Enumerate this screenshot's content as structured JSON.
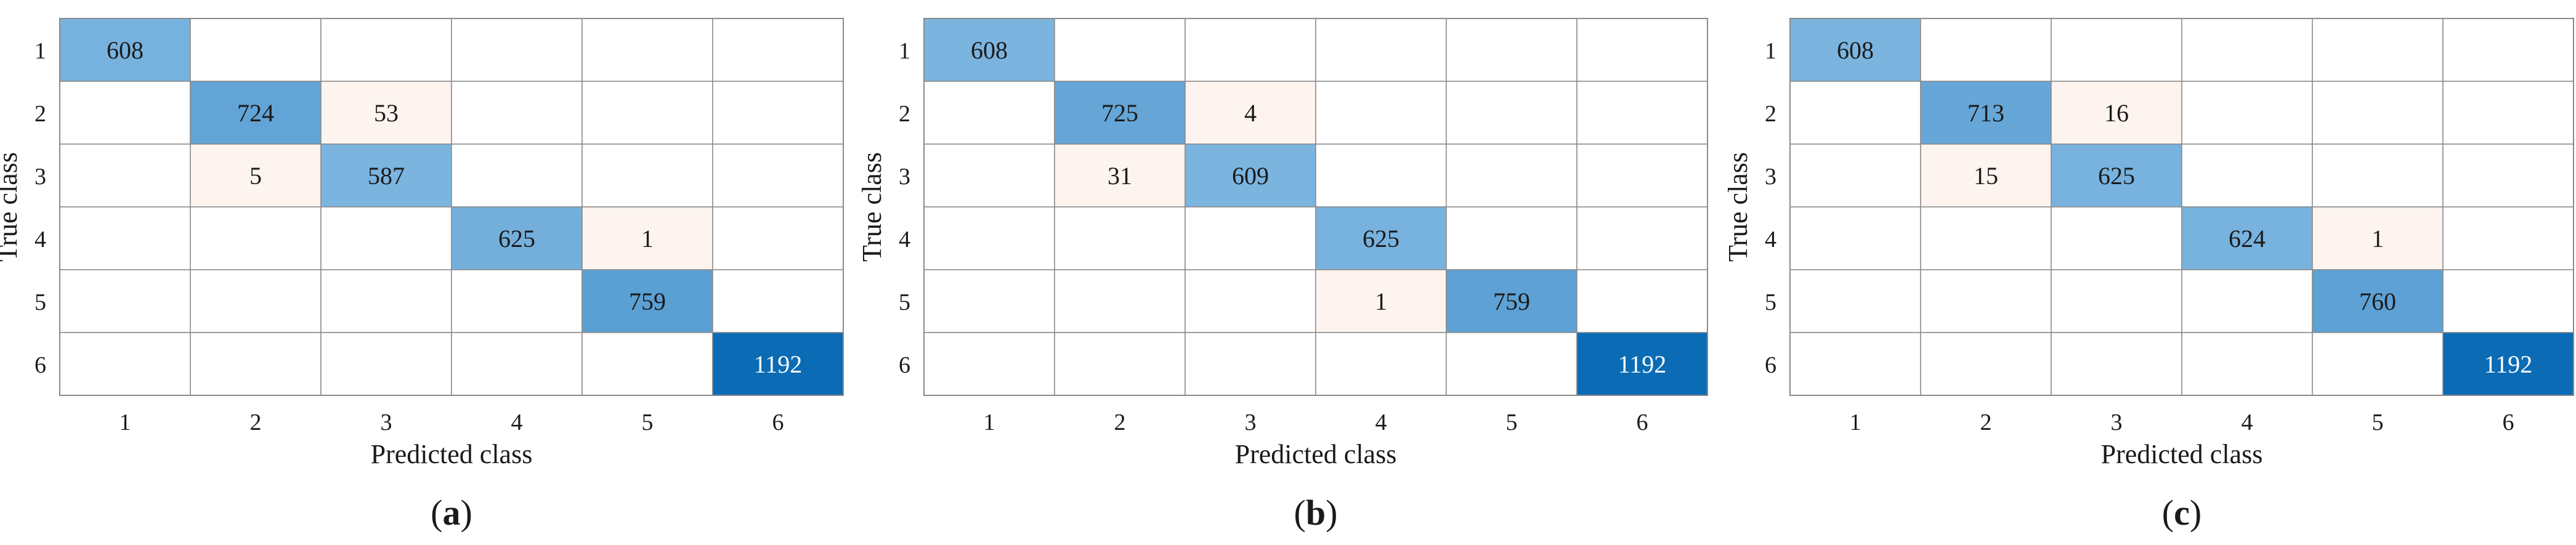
{
  "colors": {
    "diag_low": "#7bb4df",
    "diag_high": "#0b6cb5",
    "offdiag": "#fdf3ef",
    "grid": "#8a8a8a",
    "text_dark": "#1a1a1a",
    "text_light": "#ffffff"
  },
  "chart_data": [
    {
      "type": "heatmap",
      "panel_label": "(a)",
      "panel_letter": "a",
      "xlabel": "Predicted class",
      "ylabel": "True class",
      "x": [
        "1",
        "2",
        "3",
        "4",
        "5",
        "6"
      ],
      "y": [
        "1",
        "2",
        "3",
        "4",
        "5",
        "6"
      ],
      "matrix": [
        [
          608,
          0,
          0,
          0,
          0,
          0
        ],
        [
          0,
          724,
          53,
          0,
          0,
          0
        ],
        [
          0,
          5,
          587,
          0,
          0,
          0
        ],
        [
          0,
          0,
          0,
          625,
          1,
          0
        ],
        [
          0,
          0,
          0,
          0,
          759,
          0
        ],
        [
          0,
          0,
          0,
          0,
          0,
          1192
        ]
      ]
    },
    {
      "type": "heatmap",
      "panel_label": "(b)",
      "panel_letter": "b",
      "xlabel": "Predicted class",
      "ylabel": "True class",
      "x": [
        "1",
        "2",
        "3",
        "4",
        "5",
        "6"
      ],
      "y": [
        "1",
        "2",
        "3",
        "4",
        "5",
        "6"
      ],
      "matrix": [
        [
          608,
          0,
          0,
          0,
          0,
          0
        ],
        [
          0,
          725,
          4,
          0,
          0,
          0
        ],
        [
          0,
          31,
          609,
          0,
          0,
          0
        ],
        [
          0,
          0,
          0,
          625,
          0,
          0
        ],
        [
          0,
          0,
          0,
          1,
          759,
          0
        ],
        [
          0,
          0,
          0,
          0,
          0,
          1192
        ]
      ]
    },
    {
      "type": "heatmap",
      "panel_label": "(c)",
      "panel_letter": "c",
      "xlabel": "Predicted class",
      "ylabel": "True class",
      "x": [
        "1",
        "2",
        "3",
        "4",
        "5",
        "6"
      ],
      "y": [
        "1",
        "2",
        "3",
        "4",
        "5",
        "6"
      ],
      "matrix": [
        [
          608,
          0,
          0,
          0,
          0,
          0
        ],
        [
          0,
          713,
          16,
          0,
          0,
          0
        ],
        [
          0,
          15,
          625,
          0,
          0,
          0
        ],
        [
          0,
          0,
          0,
          624,
          1,
          0
        ],
        [
          0,
          0,
          0,
          0,
          760,
          0
        ],
        [
          0,
          0,
          0,
          0,
          0,
          1192
        ]
      ]
    }
  ]
}
